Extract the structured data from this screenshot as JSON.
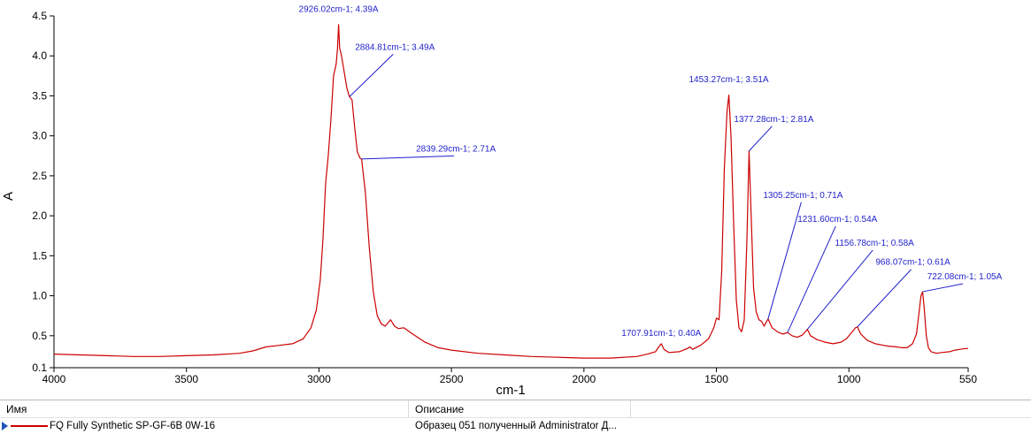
{
  "chart_data": {
    "type": "line",
    "xlabel": "cm-1",
    "ylabel": "A",
    "xlim": [
      4000,
      550
    ],
    "ylim": [
      0.1,
      4.5
    ],
    "x_reversed": true,
    "xticks": [
      4000,
      3500,
      3000,
      2500,
      2000,
      1500,
      1000,
      550
    ],
    "yticks": [
      {
        "v": 0.1,
        "label": "0.1"
      },
      {
        "v": 0.5,
        "label": "0.5"
      },
      {
        "v": 1.0,
        "label": "1.0"
      },
      {
        "v": 1.5,
        "label": "1.5"
      },
      {
        "v": 2.0,
        "label": "2.0"
      },
      {
        "v": 2.5,
        "label": "2.5"
      },
      {
        "v": 3.0,
        "label": "3.0"
      },
      {
        "v": 3.5,
        "label": "3.5"
      },
      {
        "v": 4.0,
        "label": "4.0"
      },
      {
        "v": 4.5,
        "label": "4.5"
      }
    ],
    "grid": false,
    "series": [
      {
        "color": "#cc0000",
        "points": [
          [
            4000,
            0.27
          ],
          [
            3900,
            0.26
          ],
          [
            3800,
            0.25
          ],
          [
            3700,
            0.24
          ],
          [
            3600,
            0.24
          ],
          [
            3500,
            0.25
          ],
          [
            3400,
            0.26
          ],
          [
            3300,
            0.28
          ],
          [
            3250,
            0.31
          ],
          [
            3200,
            0.36
          ],
          [
            3150,
            0.38
          ],
          [
            3100,
            0.4
          ],
          [
            3060,
            0.46
          ],
          [
            3030,
            0.6
          ],
          [
            3010,
            0.82
          ],
          [
            2995,
            1.2
          ],
          [
            2985,
            1.7
          ],
          [
            2975,
            2.4
          ],
          [
            2965,
            2.75
          ],
          [
            2955,
            3.2
          ],
          [
            2945,
            3.75
          ],
          [
            2935,
            3.9
          ],
          [
            2930,
            4.1
          ],
          [
            2926,
            4.39
          ],
          [
            2922,
            4.1
          ],
          [
            2915,
            4.0
          ],
          [
            2905,
            3.8
          ],
          [
            2895,
            3.6
          ],
          [
            2885,
            3.49
          ],
          [
            2875,
            3.45
          ],
          [
            2865,
            3.1
          ],
          [
            2855,
            2.8
          ],
          [
            2845,
            2.72
          ],
          [
            2839,
            2.71
          ],
          [
            2825,
            2.3
          ],
          [
            2810,
            1.6
          ],
          [
            2795,
            1.05
          ],
          [
            2780,
            0.75
          ],
          [
            2765,
            0.65
          ],
          [
            2750,
            0.62
          ],
          [
            2730,
            0.7
          ],
          [
            2715,
            0.62
          ],
          [
            2700,
            0.59
          ],
          [
            2680,
            0.6
          ],
          [
            2650,
            0.53
          ],
          [
            2600,
            0.42
          ],
          [
            2550,
            0.35
          ],
          [
            2500,
            0.32
          ],
          [
            2400,
            0.28
          ],
          [
            2300,
            0.26
          ],
          [
            2200,
            0.24
          ],
          [
            2100,
            0.23
          ],
          [
            2000,
            0.22
          ],
          [
            1900,
            0.22
          ],
          [
            1800,
            0.24
          ],
          [
            1760,
            0.27
          ],
          [
            1730,
            0.3
          ],
          [
            1718,
            0.36
          ],
          [
            1708,
            0.4
          ],
          [
            1698,
            0.33
          ],
          [
            1680,
            0.29
          ],
          [
            1640,
            0.3
          ],
          [
            1610,
            0.34
          ],
          [
            1600,
            0.36
          ],
          [
            1590,
            0.33
          ],
          [
            1560,
            0.38
          ],
          [
            1530,
            0.46
          ],
          [
            1510,
            0.6
          ],
          [
            1500,
            0.72
          ],
          [
            1490,
            0.7
          ],
          [
            1480,
            1.3
          ],
          [
            1470,
            2.6
          ],
          [
            1460,
            3.3
          ],
          [
            1453,
            3.51
          ],
          [
            1445,
            3.0
          ],
          [
            1435,
            1.9
          ],
          [
            1425,
            0.95
          ],
          [
            1415,
            0.6
          ],
          [
            1405,
            0.55
          ],
          [
            1395,
            0.7
          ],
          [
            1385,
            1.7
          ],
          [
            1377,
            2.81
          ],
          [
            1370,
            2.1
          ],
          [
            1360,
            1.1
          ],
          [
            1350,
            0.8
          ],
          [
            1340,
            0.7
          ],
          [
            1330,
            0.68
          ],
          [
            1320,
            0.62
          ],
          [
            1305,
            0.71
          ],
          [
            1290,
            0.6
          ],
          [
            1270,
            0.55
          ],
          [
            1250,
            0.52
          ],
          [
            1231,
            0.54
          ],
          [
            1215,
            0.5
          ],
          [
            1195,
            0.48
          ],
          [
            1175,
            0.51
          ],
          [
            1157,
            0.58
          ],
          [
            1145,
            0.5
          ],
          [
            1120,
            0.45
          ],
          [
            1090,
            0.42
          ],
          [
            1060,
            0.4
          ],
          [
            1030,
            0.42
          ],
          [
            1010,
            0.46
          ],
          [
            990,
            0.54
          ],
          [
            975,
            0.6
          ],
          [
            968,
            0.61
          ],
          [
            955,
            0.52
          ],
          [
            930,
            0.44
          ],
          [
            900,
            0.4
          ],
          [
            870,
            0.38
          ],
          [
            850,
            0.37
          ],
          [
            820,
            0.36
          ],
          [
            800,
            0.35
          ],
          [
            780,
            0.35
          ],
          [
            760,
            0.4
          ],
          [
            745,
            0.52
          ],
          [
            735,
            0.8
          ],
          [
            728,
            1.0
          ],
          [
            722,
            1.05
          ],
          [
            716,
            0.85
          ],
          [
            708,
            0.5
          ],
          [
            700,
            0.35
          ],
          [
            690,
            0.3
          ],
          [
            670,
            0.28
          ],
          [
            650,
            0.29
          ],
          [
            620,
            0.3
          ],
          [
            600,
            0.32
          ],
          [
            580,
            0.33
          ],
          [
            560,
            0.34
          ],
          [
            550,
            0.34
          ]
        ]
      }
    ],
    "annotations": [
      {
        "text": "2926.02cm-1; 4.39A",
        "x": 2926.02,
        "y": 4.39,
        "tx": 2926.02,
        "ty": 4.55
      },
      {
        "text": "2884.81cm-1; 3.49A",
        "x": 2884.81,
        "y": 3.49,
        "tx": 2720,
        "ty": 4.02
      },
      {
        "text": "2839.29cm-1; 2.71A",
        "x": 2839.29,
        "y": 2.71,
        "tx": 2490,
        "ty": 2.75
      },
      {
        "text": "1453.27cm-1; 3.51A",
        "x": 1453.27,
        "y": 3.51,
        "tx": 1453.27,
        "ty": 3.67
      },
      {
        "text": "1377.28cm-1; 2.81A",
        "x": 1377.28,
        "y": 2.81,
        "tx": 1290,
        "ty": 3.12
      },
      {
        "text": "1305.25cm-1; 0.71A",
        "x": 1305.25,
        "y": 0.71,
        "tx": 1180,
        "ty": 2.17
      },
      {
        "text": "1231.60cm-1; 0.54A",
        "x": 1231.6,
        "y": 0.54,
        "tx": 1050,
        "ty": 1.87
      },
      {
        "text": "1156.78cm-1; 0.58A",
        "x": 1156.78,
        "y": 0.58,
        "tx": 910,
        "ty": 1.57
      },
      {
        "text": "968.07cm-1; 0.61A",
        "x": 968.07,
        "y": 0.61,
        "tx": 765,
        "ty": 1.33
      },
      {
        "text": "722.08cm-1; 1.05A",
        "x": 722.08,
        "y": 1.05,
        "tx": 570,
        "ty": 1.15
      },
      {
        "text": "1707.91cm-1; 0.40A",
        "x": 1707.91,
        "y": 0.4,
        "tx": 1707.91,
        "ty": 0.5
      }
    ]
  },
  "colors": {
    "curve": "#cc0000",
    "annotation": "#1f1fcc",
    "axis": "#000000"
  },
  "legend_table": {
    "col_name": "Имя",
    "col_description": "Описание",
    "rows": [
      {
        "name": "FQ Fully Synthetic SP-GF-6B 0W-16",
        "description": "Образец 051 полученный Administrator Д...",
        "selected_icon": "arrow-right-icon"
      }
    ]
  }
}
